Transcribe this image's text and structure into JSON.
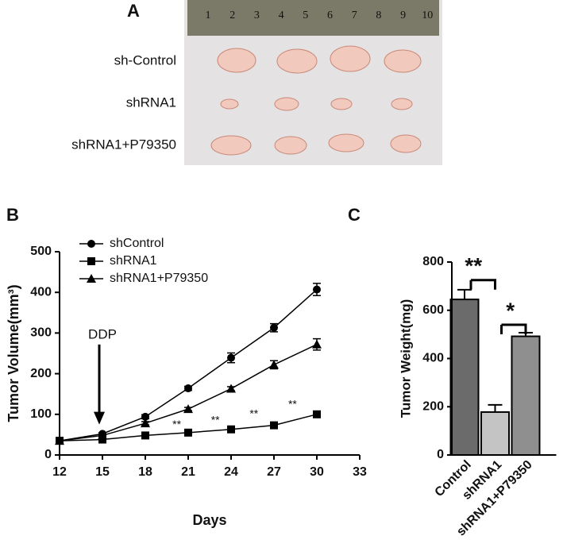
{
  "photo": {
    "label": "A",
    "ruler": [
      "1",
      "2",
      "3",
      "4",
      "5",
      "6",
      "7",
      "8",
      "9",
      "10"
    ],
    "rows": [
      "sh-Control",
      "shRNA1",
      "shRNA1+P79350"
    ]
  },
  "chart_data": [
    {
      "type": "line",
      "panel": "B",
      "x_label": "Days",
      "y_label": "Tumor Volume(mm³)",
      "x": [
        12,
        15,
        18,
        21,
        24,
        27,
        30
      ],
      "series": [
        {
          "name": "shControl",
          "color": "#000000",
          "marker": "circle",
          "values": [
            35,
            52,
            94,
            164,
            239,
            313,
            407
          ],
          "errors": [
            0,
            3,
            5,
            5,
            12,
            10,
            15
          ]
        },
        {
          "name": "shRNA1",
          "color": "#000000",
          "marker": "square",
          "values": [
            35,
            38,
            48,
            55,
            63,
            73,
            100
          ],
          "errors": [
            0,
            2,
            3,
            3,
            4,
            4,
            5
          ]
        },
        {
          "name": "shRNA1+P79350",
          "color": "#000000",
          "marker": "triangle",
          "values": [
            35,
            48,
            78,
            113,
            163,
            222,
            272
          ],
          "errors": [
            0,
            3,
            4,
            4,
            5,
            10,
            14
          ]
        }
      ],
      "xlim": [
        12,
        33
      ],
      "xticks": [
        12,
        15,
        18,
        21,
        24,
        27,
        30,
        33
      ],
      "ylim": [
        0,
        500
      ],
      "yticks": [
        0,
        100,
        200,
        300,
        400,
        500
      ],
      "legend": "upper left",
      "arrow": {
        "text": "DDP",
        "x": 15,
        "y": 260,
        "to": 75
      },
      "significance": [
        {
          "text": "**",
          "x": 20.2,
          "y": 74
        },
        {
          "text": "**",
          "x": 22.9,
          "y": 84
        },
        {
          "text": "**",
          "x": 25.6,
          "y": 100
        },
        {
          "text": "**",
          "x": 28.3,
          "y": 123
        }
      ]
    },
    {
      "type": "bar",
      "panel": "C",
      "y_label": "Tumor Weight(mg)",
      "categories": [
        "Control",
        "shRNA1",
        "shRNA1+P79350"
      ],
      "values": [
        645,
        178,
        492
      ],
      "errors": [
        40,
        30,
        15
      ],
      "colors": [
        "#6b6b6b",
        "#c4c4c4",
        "#8f8f8f"
      ],
      "ylim": [
        0,
        800
      ],
      "yticks": [
        0,
        200,
        400,
        600,
        800
      ],
      "brackets": [
        {
          "text": "**",
          "from": 0,
          "to": 1,
          "y": 725
        },
        {
          "text": "*",
          "from": 1,
          "to": 2,
          "y": 540
        }
      ]
    }
  ]
}
